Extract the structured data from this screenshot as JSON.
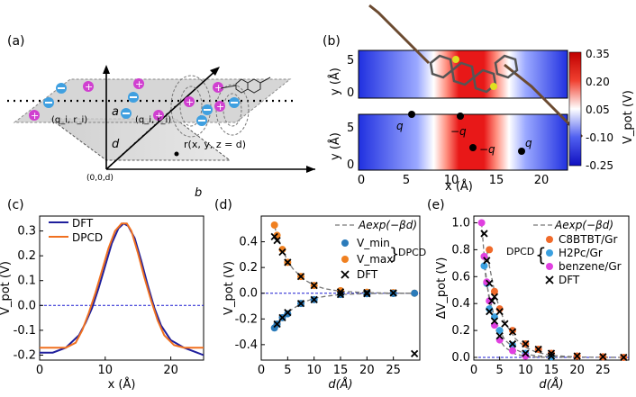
{
  "panel_a": {
    "label": "(a)",
    "charge_label_left": "(q_i, r_i)",
    "charge_label_mid": "(q_i, r_i)",
    "axis_a": "a",
    "axis_b": "b",
    "axis_d": "d",
    "origin": "(0,0,d)",
    "point": "r(x, y, z = d)"
  },
  "panel_b": {
    "label": "(b)",
    "ylabel_top": "y (Å)",
    "ylabel_bottom": "y (Å)",
    "xlabel": "x (Å)",
    "xticks": [
      "0",
      "5",
      "10",
      "15",
      "20"
    ],
    "yticks_top": [
      "0",
      "5"
    ],
    "yticks_bottom": [
      "0",
      "5"
    ],
    "charges": [
      "q",
      "−q",
      "−q",
      "q"
    ],
    "colorbar_label": "V_pot (V)",
    "colorbar_ticks": [
      "0.35",
      "0.20",
      "0.05",
      "-0.10",
      "-0.25"
    ]
  },
  "chart_data": [
    {
      "type": "line",
      "panel": "(c)",
      "xlabel": "x (Å)",
      "ylabel": "V_pot (V)",
      "xlim": [
        0,
        25
      ],
      "ylim": [
        -0.22,
        0.36
      ],
      "xticks": [
        "0",
        "10",
        "20"
      ],
      "yticks": [
        "-0.2",
        "-0.1",
        "0.0",
        "0.1",
        "0.2",
        "0.3"
      ],
      "legend": [
        "DFT",
        "DPCD"
      ],
      "series": [
        {
          "name": "DFT",
          "color": "#1f1f9c",
          "x": [
            0,
            2,
            4,
            6,
            7,
            8,
            9,
            10,
            11,
            12,
            12.8,
            13.5,
            14.5,
            15.5,
            16.5,
            17.5,
            18.5,
            20,
            22,
            24,
            25
          ],
          "y": [
            -0.19,
            -0.19,
            -0.17,
            -0.12,
            -0.07,
            -0.01,
            0.07,
            0.16,
            0.25,
            0.31,
            0.33,
            0.32,
            0.27,
            0.18,
            0.08,
            -0.01,
            -0.08,
            -0.14,
            -0.17,
            -0.19,
            -0.2
          ]
        },
        {
          "name": "DPCD",
          "color": "#f07020",
          "x": [
            0,
            2,
            4,
            5.5,
            6.5,
            7.5,
            8.5,
            9.5,
            10.5,
            11.5,
            12.5,
            13.3,
            14,
            15,
            16,
            17,
            18,
            19,
            20.5,
            22,
            25
          ],
          "y": [
            -0.17,
            -0.17,
            -0.17,
            -0.15,
            -0.1,
            -0.03,
            0.05,
            0.14,
            0.23,
            0.3,
            0.33,
            0.33,
            0.3,
            0.21,
            0.11,
            0.02,
            -0.06,
            -0.12,
            -0.16,
            -0.17,
            -0.17
          ]
        }
      ]
    },
    {
      "type": "scatter",
      "panel": "(d)",
      "xlabel": "d(Å)",
      "ylabel": "V_pot (V)",
      "xlim": [
        0,
        30
      ],
      "ylim": [
        -0.52,
        0.6
      ],
      "xticks": [
        "0",
        "5",
        "10",
        "15",
        "20",
        "25"
      ],
      "yticks": [
        "-0.4",
        "-0.2",
        "0.0",
        "0.2",
        "0.4"
      ],
      "legend_fit": "Aexp(−βd)",
      "legend_vmin": "V_min",
      "legend_vmax": "V_max",
      "legend_group": "DPCD",
      "legend_dft": "DFT",
      "series": [
        {
          "name": "Fit Vmax",
          "color": "#777777",
          "x": [
            2.5,
            3,
            4,
            5,
            6,
            8,
            10,
            12,
            15,
            20,
            25,
            29
          ],
          "y": [
            0.52,
            0.45,
            0.34,
            0.25,
            0.19,
            0.11,
            0.06,
            0.035,
            0.015,
            0.004,
            0.001,
            0.0
          ]
        },
        {
          "name": "Fit Vmin",
          "color": "#777777",
          "x": [
            2.5,
            3,
            4,
            5,
            6,
            8,
            10,
            12,
            15,
            20,
            25,
            29
          ],
          "y": [
            -0.27,
            -0.24,
            -0.19,
            -0.15,
            -0.12,
            -0.07,
            -0.04,
            -0.025,
            -0.01,
            -0.003,
            -0.001,
            0.0
          ]
        },
        {
          "name": "V_max",
          "color": "#f08020",
          "x": [
            2.5,
            3,
            4,
            5,
            7.5,
            10,
            15,
            20,
            25,
            29
          ],
          "y": [
            0.53,
            0.45,
            0.34,
            0.24,
            0.13,
            0.06,
            0.02,
            0.008,
            0.004,
            0.0
          ]
        },
        {
          "name": "V_min",
          "color": "#2b7bba",
          "x": [
            2.5,
            3,
            4,
            5,
            7.5,
            10,
            15,
            20,
            25,
            29
          ],
          "y": [
            -0.27,
            -0.24,
            -0.19,
            -0.16,
            -0.08,
            -0.05,
            -0.01,
            -0.004,
            -0.002,
            0.0
          ]
        },
        {
          "name": "DFT",
          "color": "#000000",
          "x": [
            2.5,
            3,
            3,
            4,
            4,
            5,
            5,
            7.5,
            7.5,
            10,
            10,
            15,
            15,
            20,
            20,
            25,
            29
          ],
          "y": [
            0.44,
            0.41,
            -0.24,
            0.32,
            -0.19,
            0.24,
            -0.15,
            0.13,
            -0.08,
            0.06,
            -0.05,
            0.01,
            -0.01,
            0.005,
            -0.004,
            0.002,
            -0.47
          ]
        }
      ]
    },
    {
      "type": "scatter",
      "panel": "(e)",
      "xlabel": "d(Å)",
      "ylabel": "ΔV_pot (V)",
      "xlim": [
        0,
        30
      ],
      "ylim": [
        -0.02,
        1.05
      ],
      "xticks": [
        "0",
        "5",
        "10",
        "15",
        "20",
        "25"
      ],
      "yticks": [
        "0.0",
        "0.2",
        "0.4",
        "0.6",
        "0.8",
        "1.0"
      ],
      "legend_fit": "Aexp(−βd)",
      "legend_group": "DPCD",
      "legend_dft": "DFT",
      "series": [
        {
          "name": "Fit C8",
          "color": "#777777",
          "x": [
            2.5,
            3,
            4,
            5,
            6,
            8,
            10,
            12,
            15,
            20,
            25,
            29
          ],
          "y": [
            0.8,
            0.68,
            0.49,
            0.36,
            0.26,
            0.14,
            0.075,
            0.04,
            0.015,
            0.003,
            0.001,
            0.0
          ]
        },
        {
          "name": "Fit H2Pc",
          "color": "#777777",
          "x": [
            2,
            2.5,
            3,
            4,
            5,
            6,
            8,
            10,
            12,
            15,
            20
          ],
          "y": [
            0.68,
            0.55,
            0.45,
            0.3,
            0.2,
            0.13,
            0.06,
            0.025,
            0.012,
            0.004,
            0.0
          ]
        },
        {
          "name": "Fit benzene",
          "color": "#777777",
          "x": [
            1.5,
            2,
            2.5,
            3,
            4,
            5,
            6,
            8,
            10,
            12,
            15
          ],
          "y": [
            1.0,
            0.75,
            0.56,
            0.42,
            0.24,
            0.13,
            0.075,
            0.025,
            0.008,
            0.003,
            0.0
          ]
        },
        {
          "name": "C8BTBT/Gr",
          "color": "#f06a2a",
          "x": [
            3,
            4,
            5,
            7.5,
            10,
            12.5,
            15,
            20,
            25,
            29
          ],
          "y": [
            0.8,
            0.49,
            0.36,
            0.2,
            0.1,
            0.06,
            0.03,
            0.01,
            0.004,
            0.0
          ]
        },
        {
          "name": "H2Pc/Gr",
          "color": "#3aa0e0",
          "x": [
            2,
            2.5,
            3,
            4,
            5,
            7.5,
            10,
            15
          ],
          "y": [
            0.68,
            0.55,
            0.36,
            0.3,
            0.2,
            0.09,
            0.03,
            0.005
          ]
        },
        {
          "name": "benzene/Gr",
          "color": "#e040e0",
          "x": [
            1.5,
            2,
            2.5,
            3,
            4,
            5,
            7.5,
            10
          ],
          "y": [
            1.0,
            0.75,
            0.56,
            0.42,
            0.24,
            0.13,
            0.05,
            0.01
          ]
        },
        {
          "name": "DFT",
          "color": "#000000",
          "x": [
            2,
            2.5,
            3,
            3,
            3.5,
            4,
            4,
            5,
            5,
            6,
            7.5,
            7.5,
            10,
            10,
            12.5,
            15,
            15,
            20,
            25,
            29
          ],
          "y": [
            0.92,
            0.72,
            0.55,
            0.34,
            0.42,
            0.45,
            0.27,
            0.34,
            0.16,
            0.25,
            0.19,
            0.1,
            0.1,
            0.03,
            0.06,
            0.03,
            0.01,
            0.01,
            0.005,
            0.0
          ]
        }
      ]
    }
  ],
  "panel_c": {
    "label": "(c)",
    "xlabel": "x (Å)",
    "ylabel": "V_pot (V)",
    "legend_dft": "DFT",
    "legend_dpcd": "DPCD"
  },
  "panel_d": {
    "label": "(d)",
    "xlabel": "d(Å)",
    "ylabel": "V_pot (V)",
    "legend_fit": "Aexp(−βd)",
    "legend_vmin": "V_min",
    "legend_vmax": "V_max",
    "legend_group": "DPCD",
    "legend_dft": "DFT"
  },
  "panel_e": {
    "label": "(e)",
    "xlabel": "d(Å)",
    "ylabel": "ΔV_pot (V)",
    "legend_fit": "Aexp(−βd)",
    "legend_group": "DPCD",
    "legend_c8": "C8BTBT/Gr",
    "legend_h2pc": "H2Pc/Gr",
    "legend_benzene": "benzene/Gr",
    "legend_dft": "DFT"
  }
}
